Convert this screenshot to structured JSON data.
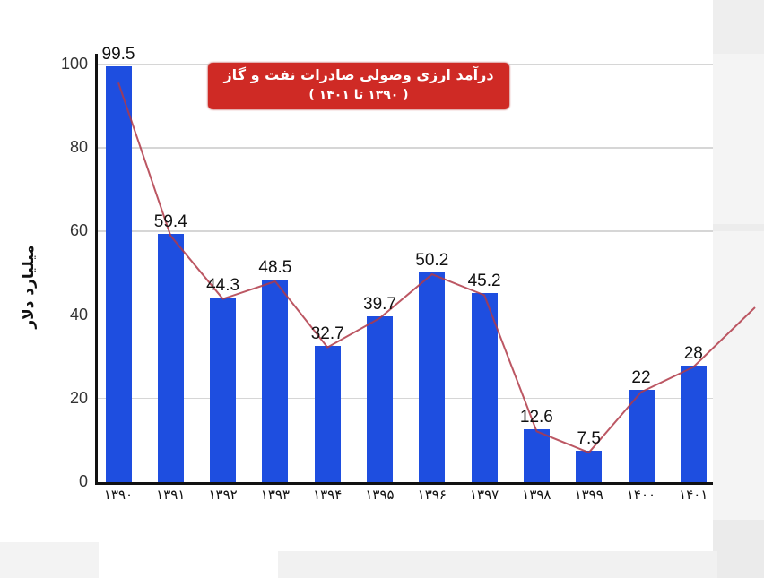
{
  "chart_data": {
    "type": "bar",
    "title": "درآمد ارزی وصولی صادرات نفت و گاز",
    "subtitle": "( ۱۳۹۰ تا ۱۴۰۱ )",
    "xlabel": "",
    "ylabel": "میلیارد دلار",
    "ylim": [
      0,
      100
    ],
    "yticks": [
      "0",
      "20",
      "40",
      "60",
      "80",
      "100"
    ],
    "grid": true,
    "legend": "none",
    "categories": [
      "۱۳۹۰",
      "۱۳۹۱",
      "۱۳۹۲",
      "۱۳۹۳",
      "۱۳۹۴",
      "۱۳۹۵",
      "۱۳۹۶",
      "۱۳۹۷",
      "۱۳۹۸",
      "۱۳۹۹",
      "۱۴۰۰",
      "۱۴۰۱"
    ],
    "values": [
      99.5,
      59.4,
      44.3,
      48.5,
      32.7,
      39.7,
      50.2,
      45.2,
      12.6,
      7.5,
      22,
      28
    ],
    "value_labels": [
      "99.5",
      "59.4",
      "44.3",
      "48.5",
      "32.7",
      "39.7",
      "50.2",
      "45.2",
      "12.6",
      "7.5",
      "22",
      "28"
    ],
    "overlay": "trend line connecting bar tops, extends upward past last bar",
    "colors": {
      "bar": "#1e4ee0",
      "trend_line": "#b03a48",
      "title_bg": "#cf2a25",
      "title_text": "#ffffff"
    }
  }
}
